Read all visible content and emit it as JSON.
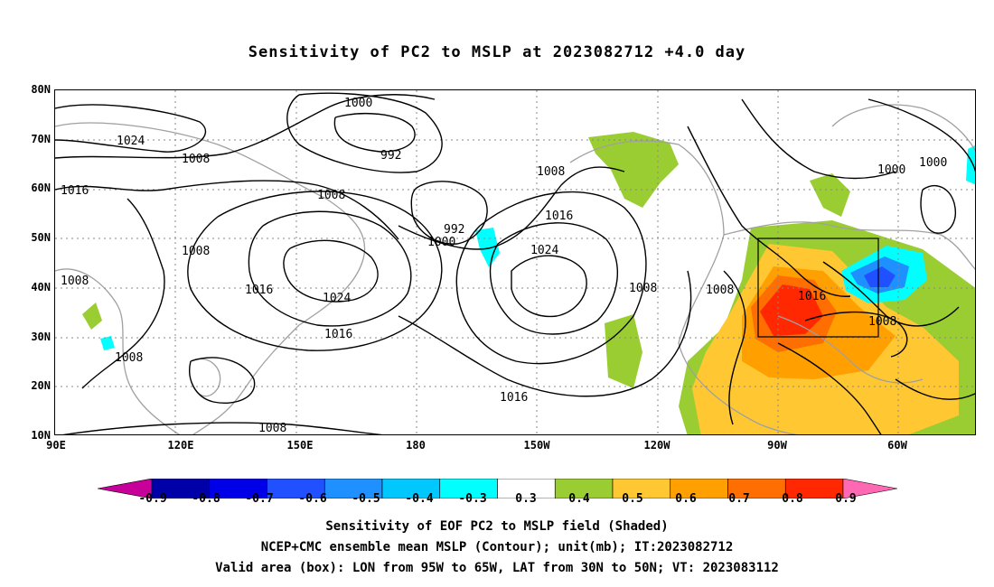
{
  "title": "Sensitivity of PC2 to MSLP at 2023082712 +4.0 day",
  "lat_labels": [
    "80N",
    "70N",
    "60N",
    "50N",
    "40N",
    "30N",
    "20N",
    "10N"
  ],
  "lon_labels": [
    "90E",
    "120E",
    "150E",
    "180",
    "150W",
    "120W",
    "90W",
    "60W"
  ],
  "contour_labels": [
    "1024",
    "1008",
    "1016",
    "1008",
    "1008",
    "1008",
    "1000",
    "992",
    "1008",
    "1016",
    "1024",
    "1016",
    "1008",
    "992",
    "1000",
    "1008",
    "1016",
    "1024",
    "1016",
    "1008",
    "1008",
    "1016",
    "1008",
    "1000",
    "1000"
  ],
  "colorbar": {
    "labels": [
      "-0.9",
      "-0.8",
      "-0.7",
      "-0.6",
      "-0.5",
      "-0.4",
      "-0.3",
      "0.3",
      "0.4",
      "0.5",
      "0.6",
      "0.7",
      "0.8",
      "0.9"
    ],
    "colors": [
      "#c8009a",
      "#0000a8",
      "#0000e8",
      "#2050ff",
      "#1e90ff",
      "#00c8ff",
      "#00ffff",
      "#ffffff",
      "#9acd32",
      "#ffc832",
      "#ffa000",
      "#ff6e00",
      "#ff2800",
      "#ff69b4"
    ]
  },
  "valid_box": {
    "lon_min": "95W",
    "lon_max": "65W",
    "lat_min": "30N",
    "lat_max": "50N"
  },
  "captions": [
    "Sensitivity of EOF PC2 to MSLP field (Shaded)",
    "NCEP+CMC ensemble mean MSLP (Contour); unit(mb); IT:2023082712",
    "Valid area (box): LON from 95W to 65W, LAT from 30N to 50N; VT: 2023083112"
  ],
  "colors": {
    "contour": "#000000",
    "coast": "#a0a0a0",
    "grid": "#888888"
  }
}
